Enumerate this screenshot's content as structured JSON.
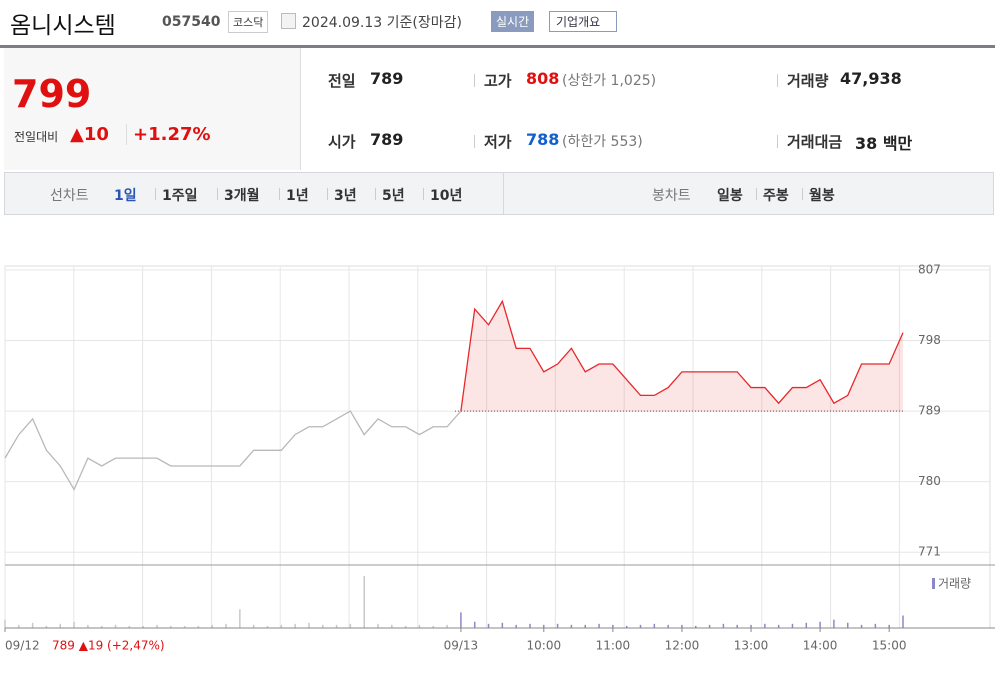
{
  "header": {
    "title": "옴니시스템",
    "code": "057540",
    "market": "코스닥",
    "date": "2024.09.13 기준(장마감)",
    "realtime": "실시간",
    "company": "기업개요"
  },
  "quote": {
    "price": "799",
    "change_label": "전일대비",
    "change": "▲10",
    "change_rate": "+1.27%",
    "rows": [
      [
        {
          "label": "전일",
          "value": "789"
        },
        {
          "label": "고가",
          "value": "808",
          "note": "(상한가 1,025)"
        },
        {
          "label": "거래량",
          "value": "47,938"
        }
      ],
      [
        {
          "label": "시가",
          "value": "789"
        },
        {
          "label": "저가",
          "value": "788",
          "note": "(하한가 553)"
        },
        {
          "label": "거래대금",
          "value": "38 백만"
        }
      ]
    ]
  },
  "tabs": {
    "line_label": "선차트",
    "line": [
      "1일",
      "1주일",
      "3개월",
      "1년",
      "3년",
      "5년",
      "10년"
    ],
    "candle_label": "봉차트",
    "candle": [
      "일봉",
      "주봉",
      "월봉"
    ]
  },
  "chart_data": {
    "type": "line",
    "prev_summary": "789 ▲19 (+2,47%)",
    "baseline": 789,
    "categories": [
      "09/12",
      null,
      null,
      null,
      null,
      null,
      null,
      null,
      null,
      null,
      null,
      null,
      null,
      null,
      null,
      null,
      null,
      null,
      null,
      null,
      null,
      null,
      null,
      null,
      null,
      null,
      null,
      null,
      null,
      null,
      null,
      null,
      null,
      "09/13",
      null,
      null,
      null,
      null,
      null,
      "10:00",
      null,
      null,
      null,
      null,
      "11:00",
      null,
      null,
      null,
      null,
      "12:00",
      null,
      null,
      null,
      null,
      "13:00",
      null,
      null,
      null,
      null,
      "14:00",
      null,
      null,
      null,
      null,
      "15:00",
      null
    ],
    "series": [
      {
        "color": "#b8b8b8",
        "values": [
          783,
          786,
          788,
          784,
          782,
          779,
          783,
          782,
          783,
          783,
          783,
          783,
          782,
          782,
          782,
          782,
          782,
          782,
          784,
          784,
          784,
          786,
          787,
          787,
          788,
          789,
          786,
          788,
          787,
          787,
          786,
          787,
          787,
          789,
          null,
          null,
          null,
          null,
          null,
          null,
          null,
          null,
          null,
          null,
          null,
          null,
          null,
          null,
          null,
          null,
          null,
          null,
          null,
          null,
          null,
          null,
          null,
          null,
          null,
          null,
          null,
          null,
          null,
          null,
          null,
          null
        ]
      },
      {
        "color": "#e8282b",
        "values": [
          null,
          null,
          null,
          null,
          null,
          null,
          null,
          null,
          null,
          null,
          null,
          null,
          null,
          null,
          null,
          null,
          null,
          null,
          null,
          null,
          null,
          null,
          null,
          null,
          null,
          null,
          null,
          null,
          null,
          null,
          null,
          null,
          null,
          789,
          802,
          800,
          803,
          797,
          797,
          794,
          795,
          797,
          794,
          795,
          795,
          793,
          791,
          791,
          792,
          794,
          794,
          794,
          794,
          794,
          792,
          792,
          790,
          792,
          792,
          793,
          790,
          791,
          795,
          795,
          795,
          799
        ]
      }
    ],
    "ylim": [
      769.5,
      807.5
    ],
    "yticks": [
      771,
      780,
      789,
      798,
      807
    ],
    "grid": true,
    "volume": {
      "name": "거래량",
      "color": "#8c88c8",
      "ylim": [
        0,
        50
      ],
      "values": [
        8,
        3,
        5,
        2,
        4,
        6,
        3,
        2,
        3,
        2,
        2,
        3,
        2,
        2,
        2,
        3,
        4,
        18,
        3,
        2,
        3,
        4,
        5,
        3,
        3,
        4,
        50,
        4,
        3,
        2,
        3,
        2,
        3,
        15,
        6,
        4,
        5,
        3,
        4,
        3,
        4,
        3,
        3,
        4,
        3,
        2,
        3,
        4,
        3,
        3,
        2,
        3,
        4,
        3,
        3,
        4,
        3,
        4,
        5,
        6,
        8,
        5,
        3,
        4,
        3,
        12
      ]
    }
  }
}
